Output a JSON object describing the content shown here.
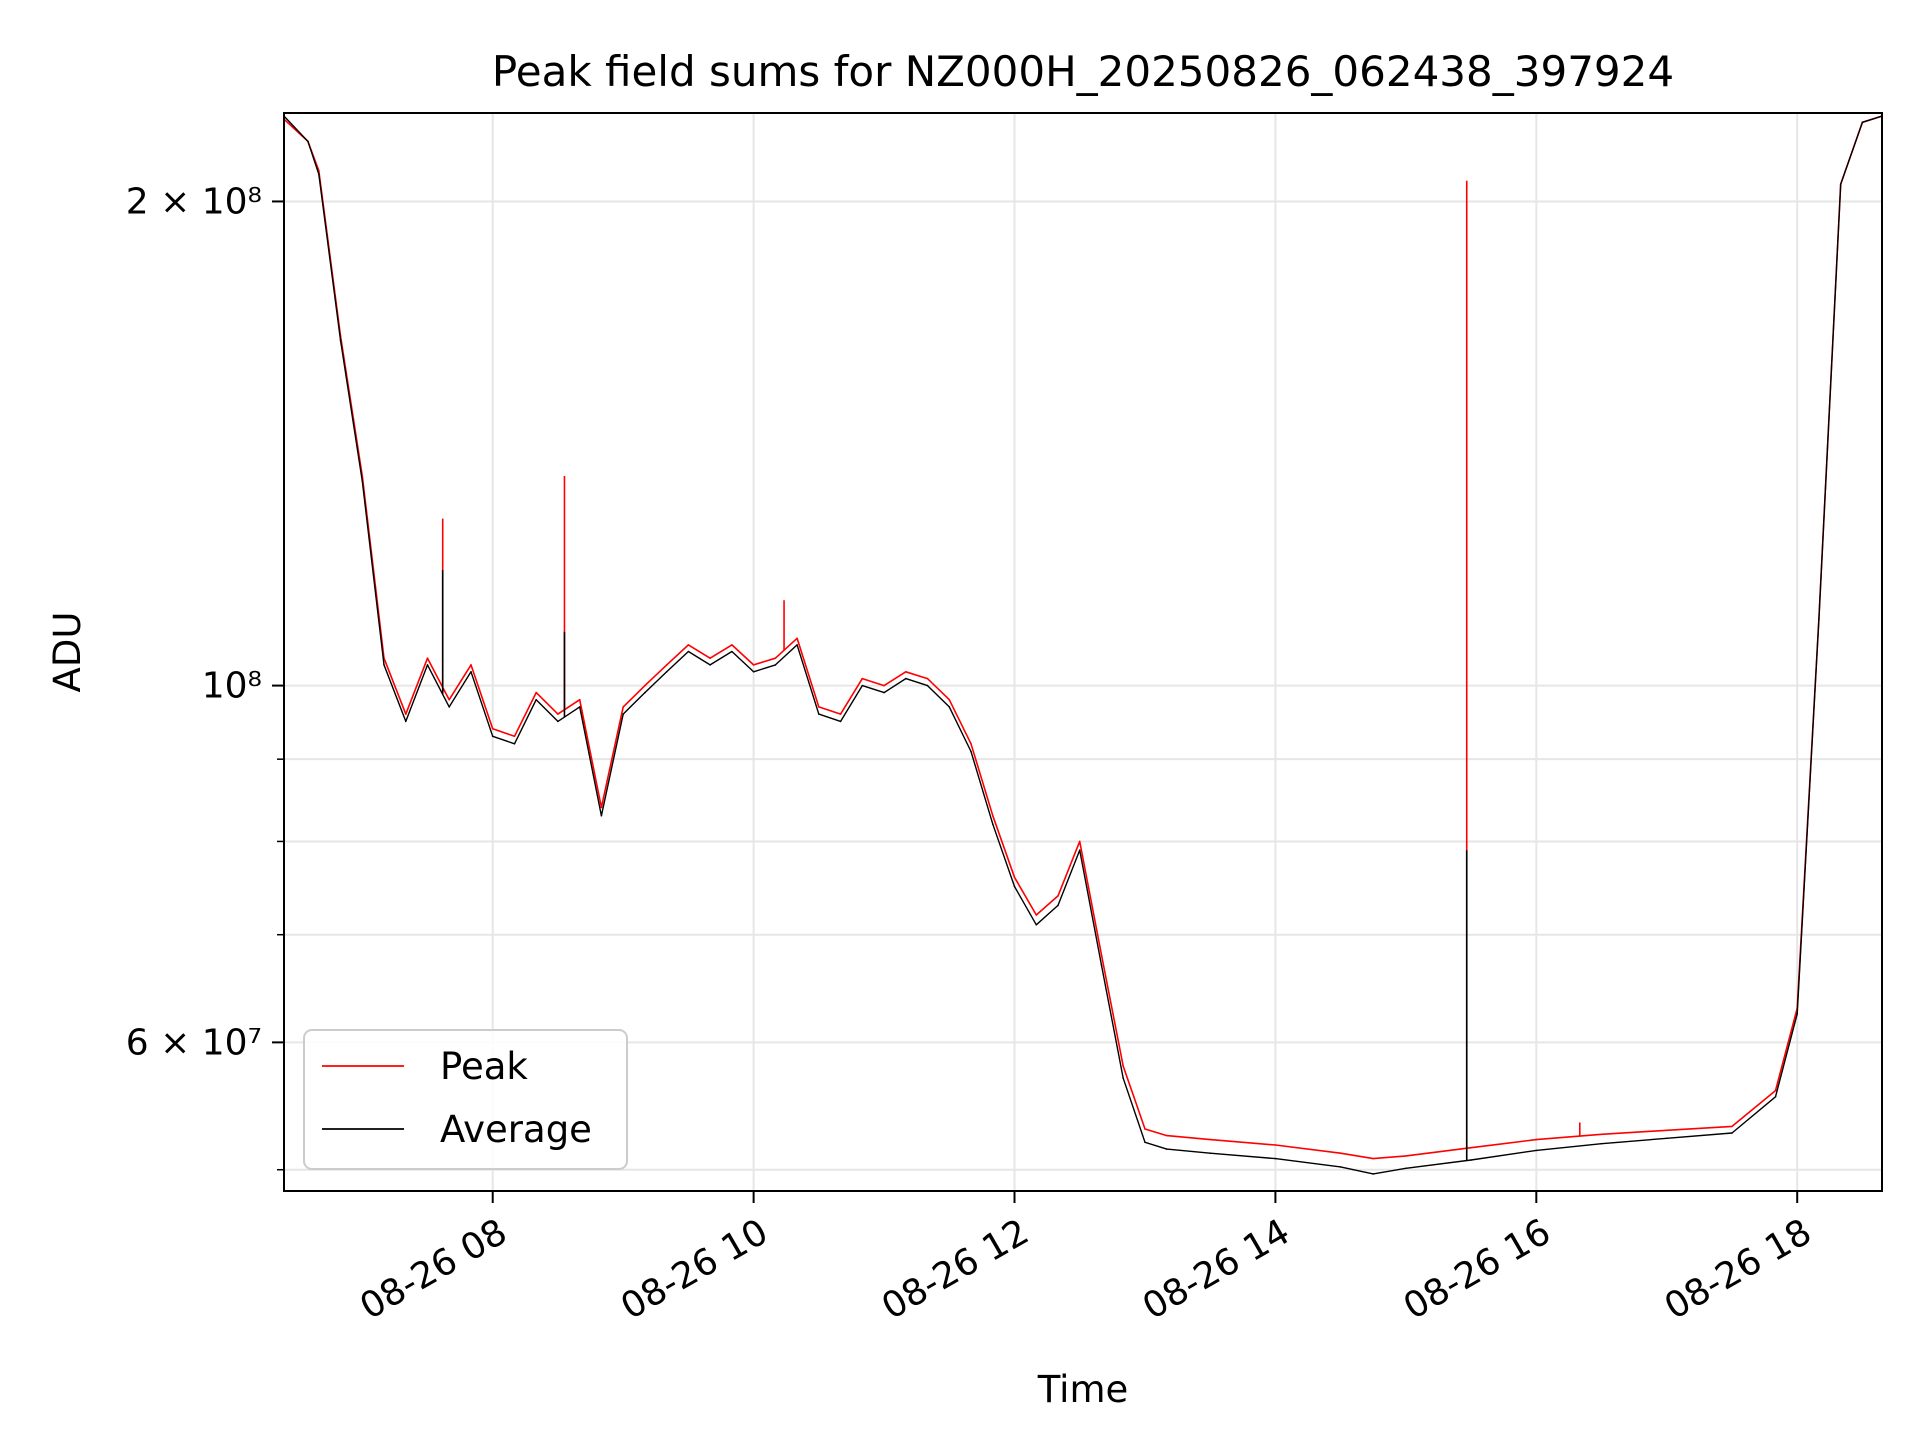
{
  "chart_data": {
    "type": "line",
    "title": "Peak field sums for NZ000H_20250826_062438_397924",
    "xlabel": "Time",
    "ylabel": "ADU",
    "x_axis": "time",
    "x_range": [
      "2025-08-26T06:24",
      "2025-08-26T18:39"
    ],
    "xticks": [
      {
        "t": "2025-08-26T08:00",
        "label": "08-26 08"
      },
      {
        "t": "2025-08-26T10:00",
        "label": "08-26 10"
      },
      {
        "t": "2025-08-26T12:00",
        "label": "08-26 12"
      },
      {
        "t": "2025-08-26T14:00",
        "label": "08-26 14"
      },
      {
        "t": "2025-08-26T16:00",
        "label": "08-26 16"
      },
      {
        "t": "2025-08-26T18:00",
        "label": "08-26 18"
      }
    ],
    "yscale": "log",
    "ylim": [
      48500000,
      227000000
    ],
    "yticks_major": [
      {
        "value": 200000000,
        "label": "2 × 10⁸"
      },
      {
        "value": 100000000,
        "label": "10⁸"
      },
      {
        "value": 60000000,
        "label": "6 × 10⁷"
      }
    ],
    "yticks_minor": [
      50000000,
      70000000,
      80000000,
      90000000
    ],
    "grid": true,
    "legend_position": "lower-left",
    "series": [
      {
        "name": "Peak",
        "color": "#ff0000",
        "points": [
          [
            "2025-08-26T06:24",
            225000000
          ],
          [
            "2025-08-26T06:35",
            218000000
          ],
          [
            "2025-08-26T06:40",
            209000000
          ],
          [
            "2025-08-26T06:50",
            165000000
          ],
          [
            "2025-08-26T07:00",
            135000000
          ],
          [
            "2025-08-26T07:10",
            104000000
          ],
          [
            "2025-08-26T07:20",
            96000000
          ],
          [
            "2025-08-26T07:30",
            104000000
          ],
          [
            "2025-08-26T07:40",
            98000000
          ],
          [
            "2025-08-26T07:50",
            103000000
          ],
          [
            "2025-08-26T08:00",
            94000000
          ],
          [
            "2025-08-26T08:10",
            93000000
          ],
          [
            "2025-08-26T08:20",
            99000000
          ],
          [
            "2025-08-26T08:30",
            96000000
          ],
          [
            "2025-08-26T08:40",
            98000000
          ],
          [
            "2025-08-26T08:50",
            84000000
          ],
          [
            "2025-08-26T09:00",
            97000000
          ],
          [
            "2025-08-26T09:10",
            100000000
          ],
          [
            "2025-08-26T09:20",
            103000000
          ],
          [
            "2025-08-26T09:30",
            106000000
          ],
          [
            "2025-08-26T09:40",
            104000000
          ],
          [
            "2025-08-26T09:50",
            106000000
          ],
          [
            "2025-08-26T10:00",
            103000000
          ],
          [
            "2025-08-26T10:10",
            104000000
          ],
          [
            "2025-08-26T10:20",
            107000000
          ],
          [
            "2025-08-26T10:30",
            97000000
          ],
          [
            "2025-08-26T10:40",
            96000000
          ],
          [
            "2025-08-26T10:50",
            101000000
          ],
          [
            "2025-08-26T11:00",
            100000000
          ],
          [
            "2025-08-26T11:10",
            102000000
          ],
          [
            "2025-08-26T11:20",
            101000000
          ],
          [
            "2025-08-26T11:30",
            98000000
          ],
          [
            "2025-08-26T11:40",
            92000000
          ],
          [
            "2025-08-26T11:50",
            83000000
          ],
          [
            "2025-08-26T12:00",
            76000000
          ],
          [
            "2025-08-26T12:10",
            72000000
          ],
          [
            "2025-08-26T12:20",
            74000000
          ],
          [
            "2025-08-26T12:30",
            80000000
          ],
          [
            "2025-08-26T12:40",
            68000000
          ],
          [
            "2025-08-26T12:50",
            58000000
          ],
          [
            "2025-08-26T13:00",
            53000000
          ],
          [
            "2025-08-26T13:10",
            52500000
          ],
          [
            "2025-08-26T13:30",
            52200000
          ],
          [
            "2025-08-26T14:00",
            51800000
          ],
          [
            "2025-08-26T14:30",
            51200000
          ],
          [
            "2025-08-26T14:45",
            50800000
          ],
          [
            "2025-08-26T15:00",
            51000000
          ],
          [
            "2025-08-26T15:30",
            51600000
          ],
          [
            "2025-08-26T16:00",
            52200000
          ],
          [
            "2025-08-26T16:30",
            52600000
          ],
          [
            "2025-08-26T17:00",
            52900000
          ],
          [
            "2025-08-26T17:30",
            53200000
          ],
          [
            "2025-08-26T17:50",
            56000000
          ],
          [
            "2025-08-26T18:00",
            63000000
          ],
          [
            "2025-08-26T18:10",
            110000000
          ],
          [
            "2025-08-26T18:20",
            205000000
          ],
          [
            "2025-08-26T18:30",
            224000000
          ],
          [
            "2025-08-26T18:39",
            226000000
          ]
        ],
        "spikes": [
          [
            "2025-08-26T07:37",
            127000000
          ],
          [
            "2025-08-26T08:33",
            135000000
          ],
          [
            "2025-08-26T10:14",
            113000000
          ],
          [
            "2025-08-26T15:28",
            206000000
          ],
          [
            "2025-08-26T16:20",
            53500000
          ]
        ]
      },
      {
        "name": "Average",
        "color": "#000000",
        "points": [
          [
            "2025-08-26T06:24",
            226000000
          ],
          [
            "2025-08-26T06:35",
            218000000
          ],
          [
            "2025-08-26T06:40",
            208000000
          ],
          [
            "2025-08-26T06:50",
            164000000
          ],
          [
            "2025-08-26T07:00",
            134000000
          ],
          [
            "2025-08-26T07:10",
            103000000
          ],
          [
            "2025-08-26T07:20",
            95000000
          ],
          [
            "2025-08-26T07:30",
            103000000
          ],
          [
            "2025-08-26T07:40",
            97000000
          ],
          [
            "2025-08-26T07:50",
            102000000
          ],
          [
            "2025-08-26T08:00",
            93000000
          ],
          [
            "2025-08-26T08:10",
            92000000
          ],
          [
            "2025-08-26T08:20",
            98000000
          ],
          [
            "2025-08-26T08:30",
            95000000
          ],
          [
            "2025-08-26T08:40",
            97000000
          ],
          [
            "2025-08-26T08:50",
            83000000
          ],
          [
            "2025-08-26T09:00",
            96000000
          ],
          [
            "2025-08-26T09:10",
            99000000
          ],
          [
            "2025-08-26T09:20",
            102000000
          ],
          [
            "2025-08-26T09:30",
            105000000
          ],
          [
            "2025-08-26T09:40",
            103000000
          ],
          [
            "2025-08-26T09:50",
            105000000
          ],
          [
            "2025-08-26T10:00",
            102000000
          ],
          [
            "2025-08-26T10:10",
            103000000
          ],
          [
            "2025-08-26T10:20",
            106000000
          ],
          [
            "2025-08-26T10:30",
            96000000
          ],
          [
            "2025-08-26T10:40",
            95000000
          ],
          [
            "2025-08-26T10:50",
            100000000
          ],
          [
            "2025-08-26T11:00",
            99000000
          ],
          [
            "2025-08-26T11:10",
            101000000
          ],
          [
            "2025-08-26T11:20",
            100000000
          ],
          [
            "2025-08-26T11:30",
            97000000
          ],
          [
            "2025-08-26T11:40",
            91000000
          ],
          [
            "2025-08-26T11:50",
            82000000
          ],
          [
            "2025-08-26T12:00",
            75000000
          ],
          [
            "2025-08-26T12:10",
            71000000
          ],
          [
            "2025-08-26T12:20",
            73000000
          ],
          [
            "2025-08-26T12:30",
            79000000
          ],
          [
            "2025-08-26T12:40",
            67000000
          ],
          [
            "2025-08-26T12:50",
            57000000
          ],
          [
            "2025-08-26T13:00",
            52000000
          ],
          [
            "2025-08-26T13:10",
            51500000
          ],
          [
            "2025-08-26T13:30",
            51200000
          ],
          [
            "2025-08-26T14:00",
            50800000
          ],
          [
            "2025-08-26T14:30",
            50200000
          ],
          [
            "2025-08-26T14:45",
            49700000
          ],
          [
            "2025-08-26T15:00",
            50100000
          ],
          [
            "2025-08-26T15:30",
            50700000
          ],
          [
            "2025-08-26T16:00",
            51400000
          ],
          [
            "2025-08-26T16:30",
            51900000
          ],
          [
            "2025-08-26T17:00",
            52300000
          ],
          [
            "2025-08-26T17:30",
            52700000
          ],
          [
            "2025-08-26T17:50",
            55500000
          ],
          [
            "2025-08-26T18:00",
            62500000
          ],
          [
            "2025-08-26T18:10",
            110000000
          ],
          [
            "2025-08-26T18:20",
            205000000
          ],
          [
            "2025-08-26T18:30",
            224000000
          ],
          [
            "2025-08-26T18:39",
            226000000
          ]
        ],
        "spikes": [
          [
            "2025-08-26T07:37",
            118000000
          ],
          [
            "2025-08-26T08:33",
            108000000
          ],
          [
            "2025-08-26T15:28",
            79000000
          ]
        ]
      }
    ]
  }
}
